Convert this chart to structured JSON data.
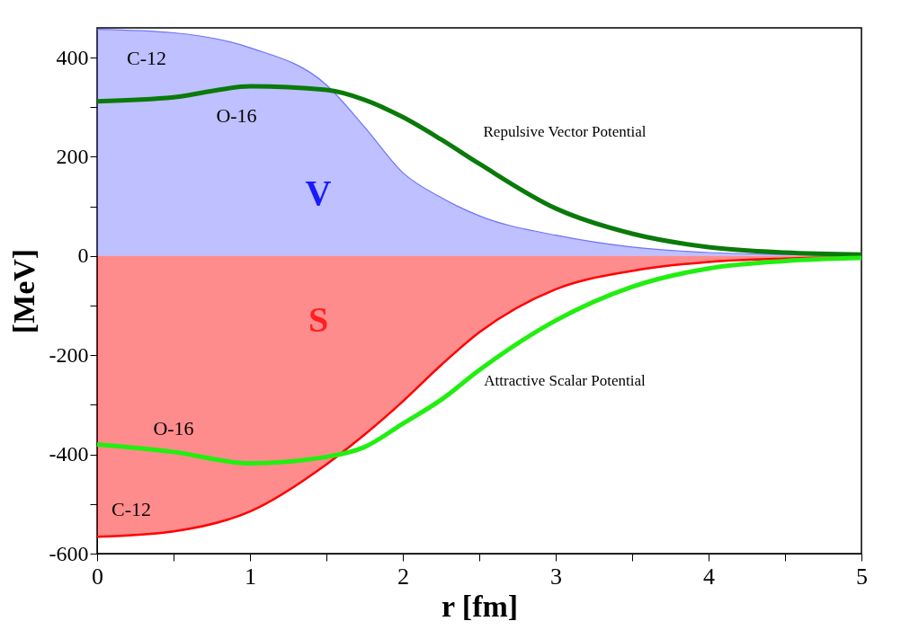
{
  "chart_data": {
    "type": "line",
    "xlabel": "r [fm]",
    "ylabel": "[MeV]",
    "x": [
      0,
      0.5,
      1,
      1.5,
      1.75,
      2,
      2.25,
      2.5,
      3,
      3.5,
      4,
      4.5,
      5
    ],
    "series": [
      {
        "name": "C-12",
        "type": "area",
        "color": "#6f73ff",
        "values": [
          457,
          450,
          420,
          345,
          260,
          168,
          118,
          81,
          42,
          18,
          7,
          3,
          1
        ]
      },
      {
        "name": "C-12",
        "type": "area",
        "color": "#ff0000",
        "values": [
          -566,
          -555,
          -515,
          -420,
          -360,
          -293,
          -220,
          -154,
          -67,
          -30,
          -12,
          -5,
          -2
        ]
      },
      {
        "name": "O-16",
        "color": "#0a7a0a",
        "values": [
          312,
          320,
          342,
          335,
          315,
          280,
          235,
          186,
          96,
          45,
          18,
          7,
          3
        ]
      },
      {
        "name": "O-16",
        "color": "#22ee11",
        "values": [
          -380,
          -395,
          -418,
          -405,
          -385,
          -338,
          -290,
          -230,
          -130,
          -62,
          -25,
          -10,
          -4
        ]
      }
    ],
    "annotations": [
      "V",
      "Repulsive Vector Potential",
      "S",
      "Attractive Scalar Potential"
    ],
    "xlim": [
      0,
      5
    ],
    "ylim": [
      -600,
      460
    ],
    "xticks": [
      0,
      {
        "value": 0.5,
        "label": null
      },
      1,
      {
        "value": 1.5,
        "label": null
      },
      2,
      {
        "value": 2.5,
        "label": null
      },
      3,
      {
        "value": 3.5,
        "label": null
      },
      4,
      {
        "value": 4.5,
        "label": null
      },
      5
    ],
    "yticks": [
      -600,
      {
        "value": -500,
        "label": null
      },
      -400,
      {
        "value": -300,
        "label": null
      },
      -200,
      {
        "value": -100,
        "label": null
      },
      0,
      {
        "value": 100,
        "label": null
      },
      200,
      {
        "value": 300,
        "label": null
      },
      400
    ],
    "grid": false,
    "line_style": "solid",
    "marker": "none"
  }
}
